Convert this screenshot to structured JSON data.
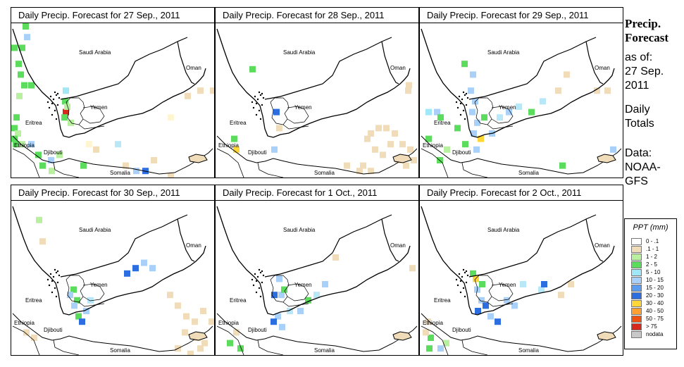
{
  "panels": [
    {
      "title": "Daily Precip. Forecast for  27 Sep., 2011",
      "cells": [
        [
          0,
          4,
          "#5cdc5c"
        ],
        [
          16,
          0,
          "#5cdc5c"
        ],
        [
          18,
          2,
          "#a8d0f8"
        ],
        [
          11,
          4,
          "#5cdc5c"
        ],
        [
          6,
          7,
          "#5cdc5c"
        ],
        [
          9,
          9,
          "#5cdc5c"
        ],
        [
          14,
          11,
          "#5cdc5c"
        ],
        [
          24,
          11,
          "#5cdc5c"
        ],
        [
          7,
          13,
          "#b8f0a0"
        ],
        [
          73,
          12,
          "#a0e8f8"
        ],
        [
          72,
          14,
          "#5cdc5c"
        ],
        [
          73,
          16,
          "#d8281c"
        ],
        [
          75,
          15,
          "#b8f0a0"
        ],
        [
          71,
          17,
          "#5cdc5c"
        ],
        [
          80,
          18,
          "#b8f0a0"
        ],
        [
          0,
          19,
          "#5cdc5c"
        ],
        [
          3,
          17,
          "#5cdc5c"
        ],
        [
          5,
          20,
          "#b8f0a0"
        ],
        [
          0,
          21,
          "#5cdc5c"
        ],
        [
          2,
          22,
          "#5cdc5c"
        ],
        [
          11,
          22,
          "#b8f0a0"
        ],
        [
          24,
          22,
          "#a8d0f8"
        ],
        [
          34,
          24,
          "#5cdc5c"
        ],
        [
          52,
          25,
          "#a8d0f8"
        ],
        [
          64,
          24,
          "#b8f0a0"
        ],
        [
          106,
          22,
          "#fff5d0"
        ],
        [
          147,
          22,
          "#b8e8f8"
        ],
        [
          173,
          27,
          "#a8d0f8"
        ],
        [
          186,
          27,
          "#2c6ee0"
        ],
        [
          198,
          25,
          "#f0dcb8"
        ],
        [
          222,
          28,
          "#f0dcb8"
        ],
        [
          222,
          17,
          "#fff5d0"
        ],
        [
          246,
          13,
          "#f0dcb8"
        ],
        [
          264,
          12,
          "#f0dcb8"
        ],
        [
          282,
          12,
          "#f0dcb8"
        ],
        [
          116,
          23,
          "#f0dcb8"
        ],
        [
          158,
          26,
          "#f0dcb8"
        ],
        [
          98,
          26,
          "#5cdc5c"
        ],
        [
          40,
          26,
          "#5cdc5c"
        ],
        [
          53,
          27,
          "#b8f0a0"
        ]
      ]
    },
    {
      "title": "Daily Precip. Forecast for  28 Sep., 2011",
      "cells": [
        [
          48,
          8,
          "#5cdc5c"
        ],
        [
          82,
          16,
          "#2c6ee0"
        ],
        [
          22,
          21,
          "#5cdc5c"
        ],
        [
          25,
          23,
          "#ffd838"
        ],
        [
          79,
          23,
          "#a8d0f8"
        ],
        [
          86,
          19,
          "#f0dcb8"
        ],
        [
          269,
          12,
          "#f0dcb8"
        ],
        [
          270,
          11,
          "#f0dcb8"
        ],
        [
          216,
          20,
          "#f0dcb8"
        ],
        [
          227,
          19,
          "#f0dcb8"
        ],
        [
          238,
          19,
          "#f0dcb8"
        ],
        [
          250,
          20,
          "#f0dcb8"
        ],
        [
          261,
          22,
          "#f0dcb8"
        ],
        [
          272,
          23,
          "#f0dcb8"
        ],
        [
          211,
          21,
          "#f0dcb8"
        ],
        [
          222,
          23,
          "#f0dcb8"
        ],
        [
          233,
          24,
          "#f0dcb8"
        ],
        [
          244,
          22,
          "#f0dcb8"
        ],
        [
          255,
          25,
          "#f0dcb8"
        ],
        [
          266,
          26,
          "#f0dcb8"
        ],
        [
          277,
          25,
          "#f0dcb8"
        ],
        [
          205,
          26,
          "#f0dcb8"
        ],
        [
          216,
          27,
          "#f0dcb8"
        ],
        [
          182,
          26,
          "#f0dcb8"
        ],
        [
          200,
          27,
          "#f0dcb8"
        ]
      ]
    },
    {
      "title": "Daily Precip. Forecast for  29 Sep., 2011",
      "cells": [
        [
          59,
          7,
          "#5cdc5c"
        ],
        [
          71,
          9,
          "#a8d0f8"
        ],
        [
          68,
          12,
          "#a8d0f8"
        ],
        [
          74,
          14,
          "#a8d0f8"
        ],
        [
          70,
          16,
          "#a8d0f8"
        ],
        [
          77,
          18,
          "#a8d0f8"
        ],
        [
          72,
          20,
          "#a8d0f8"
        ],
        [
          82,
          21,
          "#ffd838"
        ],
        [
          87,
          17,
          "#5cdc5c"
        ],
        [
          98,
          20,
          "#a8d0f8"
        ],
        [
          109,
          17,
          "#b8e8f8"
        ],
        [
          122,
          16,
          "#a8d0f8"
        ],
        [
          136,
          15,
          "#b8e8f8"
        ],
        [
          154,
          16,
          "#5cdc5c"
        ],
        [
          170,
          14,
          "#b8e8f8"
        ],
        [
          192,
          12,
          "#f0dcb8"
        ],
        [
          204,
          9,
          "#f0dcb8"
        ],
        [
          247,
          12,
          "#f0dcb8"
        ],
        [
          262,
          12,
          "#f0dcb8"
        ],
        [
          8,
          16,
          "#a0e8f8"
        ],
        [
          20,
          16,
          "#a8d0f8"
        ],
        [
          25,
          17,
          "#5cdc5c"
        ],
        [
          8,
          21,
          "#5cdc5c"
        ],
        [
          24,
          25,
          "#5cdc5c"
        ],
        [
          34,
          23,
          "#b8f0a0"
        ],
        [
          49,
          19,
          "#5cdc5c"
        ],
        [
          60,
          22,
          "#5cdc5c"
        ],
        [
          76,
          23,
          "#a8d0f8"
        ],
        [
          198,
          26,
          "#5cdc5c"
        ],
        [
          270,
          23,
          "#a8d0f8"
        ]
      ]
    },
    {
      "title": "Daily Precip. Forecast for  30 Sep., 2011",
      "cells": [
        [
          35,
          3,
          "#b8f0a0"
        ],
        [
          40,
          7,
          "#f0dcb8"
        ],
        [
          84,
          16,
          "#5cdc5c"
        ],
        [
          79,
          17,
          "#a8d0f8"
        ],
        [
          89,
          18,
          "#5cdc5c"
        ],
        [
          85,
          19,
          "#a8d0f8"
        ],
        [
          91,
          21,
          "#5cdc5c"
        ],
        [
          96,
          22,
          "#2c6ee0"
        ],
        [
          102,
          20,
          "#a8d0f8"
        ],
        [
          108,
          18,
          "#b8e8f8"
        ],
        [
          160,
          13,
          "#2c6ee0"
        ],
        [
          172,
          12,
          "#2c6ee0"
        ],
        [
          184,
          11,
          "#a8d0f8"
        ],
        [
          196,
          12,
          "#a8d0f8"
        ],
        [
          221,
          17,
          "#f0dcb8"
        ],
        [
          232,
          19,
          "#f0dcb8"
        ],
        [
          244,
          21,
          "#f0dcb8"
        ],
        [
          256,
          22,
          "#f0dcb8"
        ],
        [
          268,
          20,
          "#f0dcb8"
        ],
        [
          280,
          22,
          "#f0dcb8"
        ],
        [
          242,
          24,
          "#f0dcb8"
        ],
        [
          260,
          25,
          "#f0dcb8"
        ],
        [
          270,
          26,
          "#f0dcb8"
        ],
        [
          232,
          27,
          "#f0dcb8"
        ],
        [
          250,
          28,
          "#f0dcb8"
        ],
        [
          264,
          27,
          "#f0dcb8"
        ],
        [
          17,
          24,
          "#f0dcb8"
        ],
        [
          28,
          25,
          "#f0dcb8"
        ]
      ]
    },
    {
      "title": "Daily Precip. Forecast for  1 Oct., 2011",
      "cells": [
        [
          86,
          14,
          "#a8d0f8"
        ],
        [
          79,
          17,
          "#2c6ee0"
        ],
        [
          89,
          17,
          "#a8d0f8"
        ],
        [
          93,
          16,
          "#5cdc5c"
        ],
        [
          84,
          21,
          "#a8d0f8"
        ],
        [
          78,
          22,
          "#2c6ee0"
        ],
        [
          90,
          23,
          "#a8d0f8"
        ],
        [
          101,
          20,
          "#b8e8f8"
        ],
        [
          116,
          20,
          "#a8d0f8"
        ],
        [
          127,
          18,
          "#5cdc5c"
        ],
        [
          139,
          17,
          "#b8e8f8"
        ],
        [
          151,
          15,
          "#a8d0f8"
        ],
        [
          166,
          10,
          "#f0dcb8"
        ],
        [
          275,
          12,
          "#f0dcb8"
        ],
        [
          16,
          26,
          "#5cdc5c"
        ],
        [
          25,
          24,
          "#f0dcb8"
        ],
        [
          31,
          27,
          "#5cdc5c"
        ]
      ]
    },
    {
      "title": "Daily Precip. Forecast for  2 Oct., 2011",
      "cells": [
        [
          71,
          13,
          "#5cdc5c"
        ],
        [
          75,
          14,
          "#ffd838"
        ],
        [
          77,
          16,
          "#a8d0f8"
        ],
        [
          84,
          15,
          "#5cdc5c"
        ],
        [
          83,
          18,
          "#a8d0f8"
        ],
        [
          89,
          19,
          "#2c6ee0"
        ],
        [
          78,
          20,
          "#2c6ee0"
        ],
        [
          96,
          21,
          "#a8d0f8"
        ],
        [
          106,
          22,
          "#2c6ee0"
        ],
        [
          119,
          18,
          "#a8d0f8"
        ],
        [
          130,
          19,
          "#a8d0f8"
        ],
        [
          142,
          15,
          "#b8e8f8"
        ],
        [
          168,
          16,
          "#b8e8f8"
        ],
        [
          172,
          15,
          "#2c6ee0"
        ],
        [
          196,
          17,
          "#f0dcb8"
        ],
        [
          210,
          15,
          "#f0dcb8"
        ],
        [
          9,
          27,
          "#5cdc5c"
        ],
        [
          11,
          25,
          "#5cdc5c"
        ],
        [
          25,
          27,
          "#a8d0f8"
        ],
        [
          33,
          26,
          "#b8f0a0"
        ],
        [
          7,
          22,
          "#f0dcb8"
        ],
        [
          4,
          24,
          "#f0dcb8"
        ]
      ]
    }
  ],
  "map_labels": {
    "saudi_arabia": "Saudi Arabia",
    "oman": "Oman",
    "yemen": "Yemen",
    "eritrea": "Eritrea",
    "ethiopia": "Ethiopia",
    "djibouti": "Djibouti",
    "somalia": "Somalia"
  },
  "sidebar": {
    "title_line1": "Precip.",
    "title_line2": "Forecast",
    "as_of_label": "as of:",
    "date_line1": "27 Sep.",
    "date_line2": "2011",
    "daily_line1": "Daily",
    "daily_line2": "Totals",
    "data_label": "Data:",
    "source_line1": "NOAA-",
    "source_line2": "GFS"
  },
  "legend": {
    "title": "PPT (mm)",
    "items": [
      {
        "label": "0 - .1",
        "color": "#ffffff"
      },
      {
        "label": ".1 - 1",
        "color": "#f0dcb8"
      },
      {
        "label": "1 - 2",
        "color": "#b8f0a0"
      },
      {
        "label": "2 - 5",
        "color": "#5cdc5c"
      },
      {
        "label": "5 - 10",
        "color": "#a0e8f8"
      },
      {
        "label": "10 - 15",
        "color": "#a8d0f8"
      },
      {
        "label": "15 - 20",
        "color": "#5c9cf0"
      },
      {
        "label": "20 - 30",
        "color": "#2c6ee0"
      },
      {
        "label": "30 - 40",
        "color": "#ffd838"
      },
      {
        "label": "40 - 50",
        "color": "#ffa030"
      },
      {
        "label": "50 - 75",
        "color": "#f05010"
      },
      {
        "label": "> 75",
        "color": "#d8281c"
      },
      {
        "label": "nodata",
        "color": "#c8c8c8"
      }
    ]
  }
}
